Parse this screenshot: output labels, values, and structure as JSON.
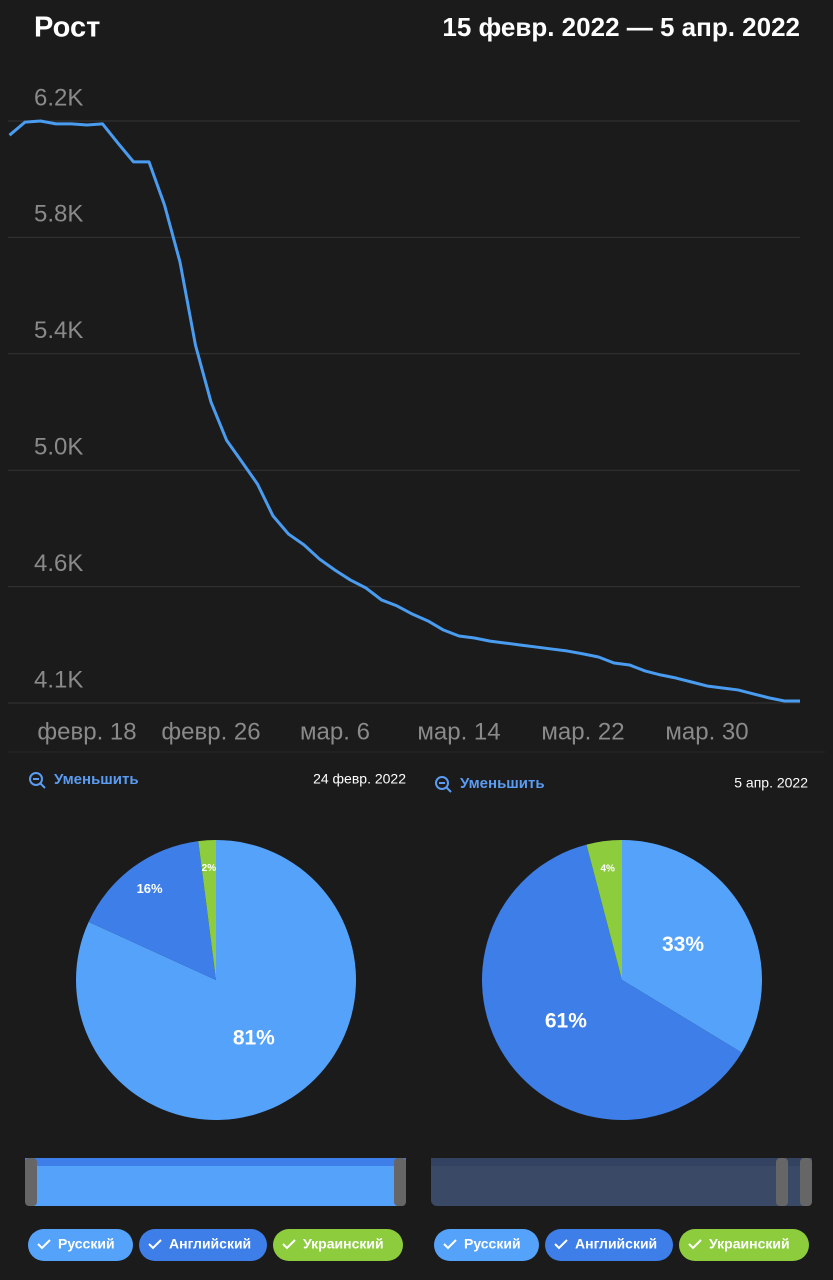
{
  "chart_data": [
    {
      "type": "line",
      "title": "Рост",
      "subtitle": "15 февр. 2022 — 5 апр. 2022",
      "color": "#4a9cf0",
      "grid": true,
      "categories": [
        null,
        null,
        null,
        null,
        null,
        "февр. 18",
        null,
        null,
        null,
        null,
        null,
        null,
        null,
        "февр. 26",
        null,
        null,
        null,
        null,
        null,
        null,
        null,
        "мар. 6",
        null,
        null,
        null,
        null,
        null,
        null,
        null,
        "мар. 14",
        null,
        null,
        null,
        null,
        null,
        null,
        null,
        "мар. 22",
        null,
        null,
        null,
        null,
        null,
        null,
        null,
        "мар. 30",
        null,
        null,
        null,
        null,
        null,
        null
      ],
      "values": [
        6140,
        6186,
        6190,
        6180,
        6180,
        6176,
        6180,
        6112,
        6046,
        6046,
        5894,
        5693,
        5400,
        5200,
        5066,
        4989,
        4911,
        4799,
        4735,
        4697,
        4647,
        4608,
        4573,
        4545,
        4503,
        4482,
        4453,
        4429,
        4397,
        4376,
        4369,
        4358,
        4351,
        4344,
        4337,
        4330,
        4323,
        4313,
        4302,
        4281,
        4274,
        4253,
        4239,
        4228,
        4214,
        4200,
        4193,
        4186,
        4172,
        4158,
        4147,
        4147
      ],
      "ylim": [
        4140,
        6350
      ],
      "yticks": [
        {
          "value": 4140,
          "label": "4.1K"
        },
        {
          "value": 4550,
          "label": "4.6K"
        },
        {
          "value": 4960,
          "label": "5.0K"
        },
        {
          "value": 5370,
          "label": "5.4K"
        },
        {
          "value": 5780,
          "label": "5.8K"
        },
        {
          "value": 6190,
          "label": "6.2K"
        }
      ]
    },
    {
      "type": "pie",
      "zoom_label": "Уменьшить",
      "date": "24 февр. 2022",
      "categories": [
        "Русский",
        "Английский",
        "Украинский"
      ],
      "colors": [
        "#55a2fb",
        "#3d7ee8",
        "#8dcd3d"
      ],
      "values": [
        81,
        16,
        2
      ],
      "value_labels": [
        "81%",
        "16%",
        "2%"
      ]
    },
    {
      "type": "pie",
      "zoom_label": "Уменьшить",
      "date": "5 апр. 2022",
      "categories": [
        "Русский",
        "Английский",
        "Украинский"
      ],
      "colors": [
        "#55a2fb",
        "#3d7ee8",
        "#8dcd3d"
      ],
      "values": [
        33,
        61,
        4
      ],
      "value_labels": [
        "33%",
        "61%",
        "4%"
      ]
    }
  ]
}
